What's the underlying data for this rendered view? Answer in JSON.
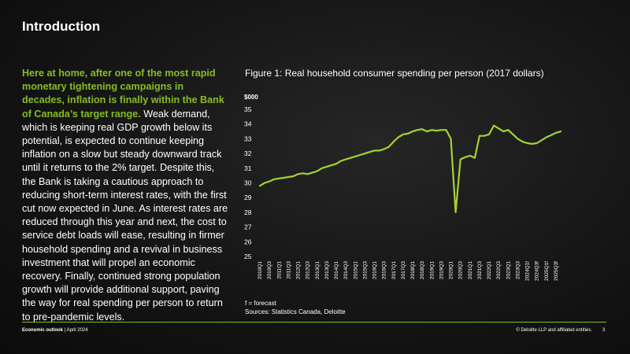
{
  "slide": {
    "title": "Introduction",
    "highlight": "Here at home, after one of the most rapid monetary tightening campaigns in decades, inflation is finally within the Bank of Canada’s target range.",
    "body": " Weak demand, which is keeping real GDP growth below its potential, is expected to continue keeping inflation on a slow but steady downward track until it returns to the 2% target. Despite this, the Bank is taking a cautious approach to reducing short-term interest rates, with the first cut now expected in June. As interest rates are reduced through this year and next, the cost to service debt loads will ease, resulting in firmer household spending and a revival in business investment that will propel an economic recovery. Finally, continued strong population growth will provide additional support, paving the way for real spending per person to return to pre-pandemic levels."
  },
  "figure": {
    "title": "Figure 1: Real household consumer spending per person (2017 dollars)",
    "note": "f = forecast",
    "sources": "Sources: Statistics Canada, Deloitte"
  },
  "footer": {
    "publication": "Economic outlook",
    "date": "| April 2024",
    "copyright": "© Deloitte LLP and affiliated entities.",
    "page": "3"
  },
  "colors": {
    "accent": "#86bc25",
    "line": "#a4d233"
  },
  "chart_data": {
    "type": "line",
    "title": "Figure 1: Real household consumer spending per person (2017 dollars)",
    "ylabel": "$000",
    "ylim": [
      25,
      35
    ],
    "yticks": [
      25,
      26,
      27,
      28,
      29,
      30,
      31,
      32,
      33,
      34,
      35
    ],
    "grid": false,
    "legend": "none",
    "tick_labels": [
      "2010Q1",
      "2010Q3",
      "2011Q1",
      "2011Q3",
      "2012Q1",
      "2012Q3",
      "2013Q1",
      "2013Q3",
      "2014Q1",
      "2014Q3",
      "2015Q1",
      "2015Q3",
      "2016Q1",
      "2016Q3",
      "2017Q1",
      "2017Q3",
      "2018Q1",
      "2018Q3",
      "2019Q1",
      "2019Q3",
      "2020Q1",
      "2020Q3",
      "2021Q1",
      "2021Q3",
      "2022Q1",
      "2022Q3",
      "2023Q1",
      "2023Q3",
      "2024Q1f",
      "2024Q3f",
      "2025Q1f",
      "2025Q3f"
    ],
    "series": [
      {
        "values": [
          29.8,
          30.0,
          30.1,
          30.25,
          30.3,
          30.35,
          30.4,
          30.45,
          30.6,
          30.65,
          30.6,
          30.7,
          30.8,
          31.0,
          31.1,
          31.2,
          31.3,
          31.5,
          31.6,
          31.7,
          31.8,
          31.9,
          32.0,
          32.1,
          32.2,
          32.2,
          32.3,
          32.45,
          32.8,
          33.1,
          33.3,
          33.35,
          33.5,
          33.6,
          33.65,
          33.5,
          33.6,
          33.55,
          33.6,
          33.6,
          33.0,
          28.0,
          31.6,
          31.75,
          31.85,
          31.7,
          33.2,
          33.2,
          33.3,
          33.9,
          33.7,
          33.5,
          33.6,
          33.3,
          33.0,
          32.8,
          32.7,
          32.65,
          32.7,
          32.9,
          33.1,
          33.25,
          33.4,
          33.5
        ]
      }
    ]
  }
}
